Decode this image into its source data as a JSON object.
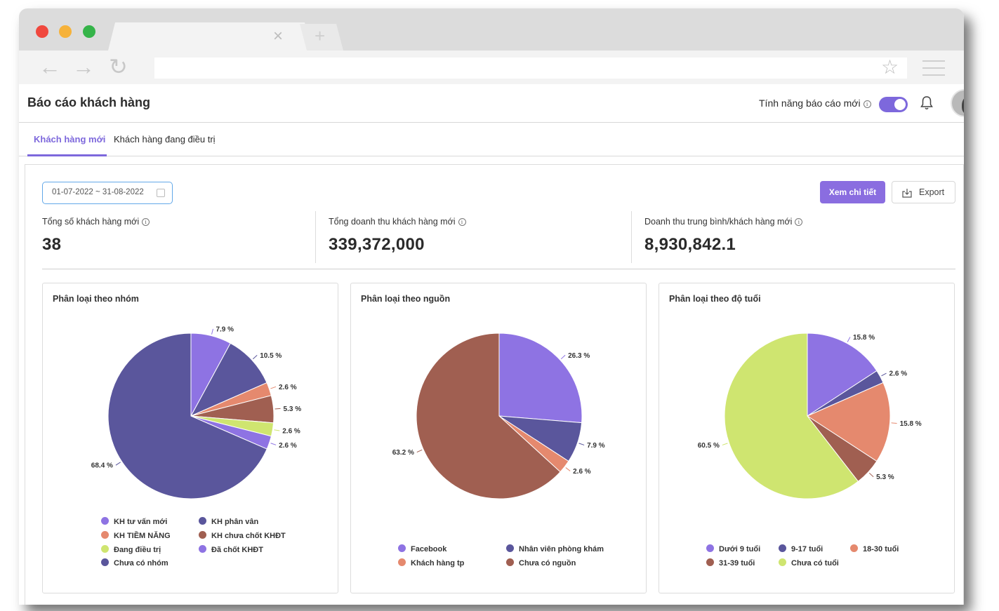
{
  "app": {
    "page_title": "Báo cáo khách hàng",
    "feature_toggle_label": "Tính năng báo cáo mới",
    "feature_toggle_on": true,
    "info_glyph": "i"
  },
  "browser": {
    "close_glyph": "×",
    "plus_glyph": "+",
    "back_glyph": "←",
    "forward_glyph": "→",
    "reload_glyph": "↻",
    "star_glyph": "☆"
  },
  "tabs": [
    {
      "label": "Khách hàng mới",
      "active": true
    },
    {
      "label": "Khách hàng đang điều trị",
      "active": false
    }
  ],
  "toolbar": {
    "date_range": "01-07-2022 ~ 31-08-2022",
    "detail_button": "Xem chi tiết",
    "export_button": "Export"
  },
  "stats": [
    {
      "label": "Tổng số khách hàng mới",
      "value": "38"
    },
    {
      "label": "Tổng doanh thu khách hàng mới",
      "value": "339,372,000"
    },
    {
      "label": "Doanh thu trung bình/khách hàng mới",
      "value": "8,930,842.1"
    }
  ],
  "colors": {
    "accent": "#7d68dc",
    "purple": "#8e73e3",
    "navy": "#5a569c",
    "salmon": "#e5896e",
    "brown": "#a05f51",
    "lime": "#cfe570"
  },
  "chart_data": [
    {
      "type": "pie",
      "title": "Phân loại theo nhóm",
      "slices": [
        {
          "name": "KH tư vấn mới",
          "value": 7.9,
          "label": "7.9 %",
          "color": "#8e73e3"
        },
        {
          "name": "KH phân vân",
          "value": 10.5,
          "label": "10.5 %",
          "color": "#5a569c"
        },
        {
          "name": "KH TIỀM NĂNG",
          "value": 2.6,
          "label": "2.6 %",
          "color": "#e5896e"
        },
        {
          "name": "KH chưa chốt KHĐT",
          "value": 5.3,
          "label": "5.3 %",
          "color": "#a05f51"
        },
        {
          "name": "Đang điều trị",
          "value": 2.6,
          "label": "2.6 %",
          "color": "#cfe570"
        },
        {
          "name": "Đã chốt KHĐT",
          "value": 2.6,
          "label": "2.6 %",
          "color": "#8e73e3"
        },
        {
          "name": "Chưa có nhóm",
          "value": 68.4,
          "label": "68.4 %",
          "color": "#5a569c"
        }
      ]
    },
    {
      "type": "pie",
      "title": "Phân loại theo nguồn",
      "slices": [
        {
          "name": "Facebook",
          "value": 26.3,
          "label": "26.3 %",
          "color": "#8e73e3"
        },
        {
          "name": "Nhân viên phòng khám",
          "value": 7.9,
          "label": "7.9 %",
          "color": "#5a569c"
        },
        {
          "name": "Khách hàng tp",
          "value": 2.6,
          "label": "2.6 %",
          "color": "#e5896e"
        },
        {
          "name": "Chưa có nguồn",
          "value": 63.2,
          "label": "63.2 %",
          "color": "#a05f51"
        }
      ]
    },
    {
      "type": "pie",
      "title": "Phân loại theo độ tuổi",
      "slices": [
        {
          "name": "Dưới 9 tuổi",
          "value": 15.8,
          "label": "15.8 %",
          "color": "#8e73e3"
        },
        {
          "name": "9-17 tuổi",
          "value": 2.6,
          "label": "2.6 %",
          "color": "#5a569c"
        },
        {
          "name": "18-30 tuổi",
          "value": 15.8,
          "label": "15.8 %",
          "color": "#e5896e"
        },
        {
          "name": "31-39 tuổi",
          "value": 5.3,
          "label": "5.3 %",
          "color": "#a05f51"
        },
        {
          "name": "Chưa có tuổi",
          "value": 60.5,
          "label": "60.5 %",
          "color": "#cfe570"
        }
      ]
    }
  ]
}
